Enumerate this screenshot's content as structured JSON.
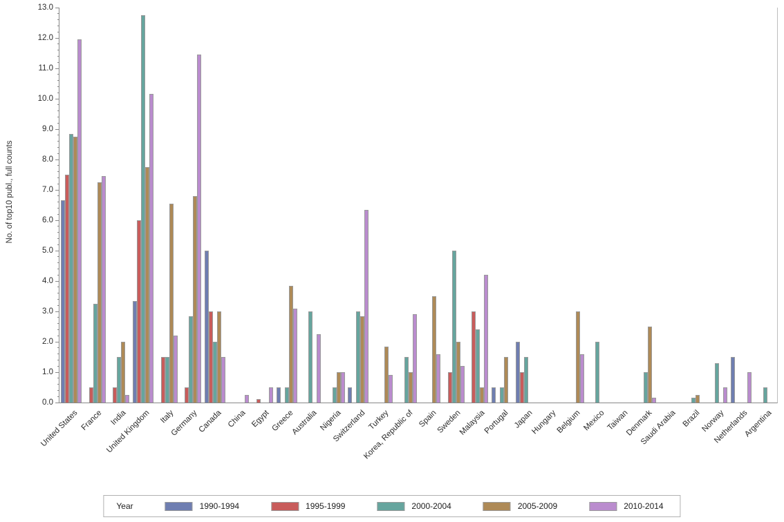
{
  "chart_data": {
    "type": "bar",
    "title": "",
    "xlabel": "",
    "ylabel": "No. of top10 publ., full counts",
    "ylim": [
      0,
      13
    ],
    "ytick_step": 1,
    "minor_tick_step": 0.2,
    "ytick_decimals": 1,
    "grid": false,
    "legend": {
      "title": "Year",
      "position": "bottom-center"
    },
    "axis_color": "#878787",
    "bar_border_color": "#9a9a9a",
    "categories": [
      "United States",
      "France",
      "India",
      "United Kingdom",
      "Italy",
      "Germany",
      "Canada",
      "China",
      "Egypt",
      "Greece",
      "Australia",
      "Nigeria",
      "Switzerland",
      "Turkey",
      "Korea, Republic of",
      "Spain",
      "Sweden",
      "Malaysia",
      "Portugal",
      "Japan",
      "Hungary",
      "Belgium",
      "Mexico",
      "Taiwan",
      "Denmark",
      "Saudi Arabia",
      "Brazil",
      "Norway",
      "Netherlands",
      "Argentina"
    ],
    "series": [
      {
        "name": "1990-1994",
        "color": "#6F7EB1",
        "values": [
          6.65,
          0,
          0,
          3.35,
          0,
          0,
          5.0,
          0,
          0,
          0.5,
          0,
          0,
          0.5,
          0,
          0,
          0,
          0,
          0,
          0.5,
          2.0,
          0,
          0,
          0,
          0,
          0,
          0,
          0,
          0,
          1.5,
          0
        ]
      },
      {
        "name": "1995-1999",
        "color": "#C85C5B",
        "values": [
          7.5,
          0.5,
          0.5,
          6.0,
          1.5,
          0.5,
          3.0,
          0,
          0.12,
          0,
          0,
          0,
          0,
          0,
          0,
          0,
          1.0,
          3.0,
          0,
          1.0,
          0,
          0,
          0,
          0,
          0,
          0,
          0,
          0,
          0,
          0
        ]
      },
      {
        "name": "2000-2004",
        "color": "#66A59E",
        "values": [
          8.85,
          3.25,
          1.5,
          12.75,
          1.5,
          2.85,
          2.0,
          0,
          0,
          0.5,
          3.0,
          0.5,
          3.0,
          0,
          1.5,
          0,
          5.0,
          2.4,
          0.5,
          1.5,
          0,
          0,
          2.0,
          0,
          1.0,
          0,
          0.15,
          1.3,
          0,
          0.5
        ]
      },
      {
        "name": "2005-2009",
        "color": "#AE8A57",
        "values": [
          8.75,
          7.25,
          2.0,
          7.75,
          6.55,
          6.8,
          3.0,
          0,
          0,
          3.85,
          0,
          1.0,
          2.85,
          1.85,
          1.0,
          3.5,
          2.0,
          0.5,
          1.5,
          0,
          0,
          3.0,
          0,
          0,
          2.5,
          0,
          0.25,
          0,
          0,
          0
        ]
      },
      {
        "name": "2010-2014",
        "color": "#BA8CCE",
        "values": [
          11.95,
          7.45,
          0.25,
          10.15,
          2.2,
          11.45,
          1.5,
          0.25,
          0.5,
          3.1,
          2.25,
          1.0,
          6.35,
          0.9,
          2.9,
          1.6,
          1.2,
          4.2,
          0,
          0,
          0,
          1.6,
          0,
          0,
          0.15,
          0,
          0,
          0.5,
          1.0,
          0
        ]
      }
    ]
  }
}
